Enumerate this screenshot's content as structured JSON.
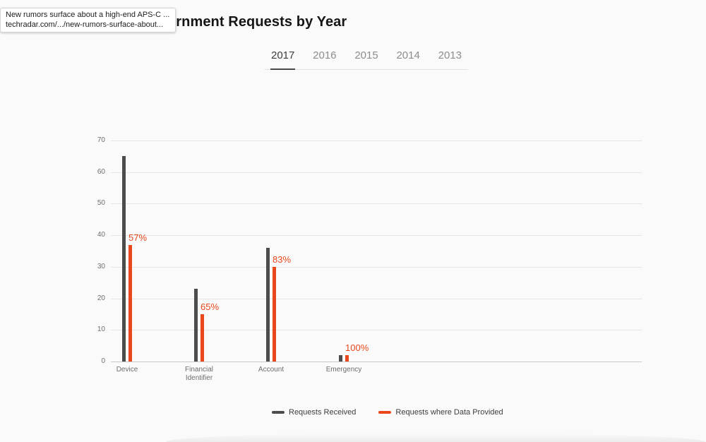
{
  "link_preview": {
    "title": "New rumors surface about a high-end APS-C ...",
    "url": "techradar.com/.../new-rumors-surface-about..."
  },
  "header": {
    "title": "India Government Requests by Year"
  },
  "tabs": [
    {
      "label": "2017",
      "active": true
    },
    {
      "label": "2016",
      "active": false
    },
    {
      "label": "2015",
      "active": false
    },
    {
      "label": "2014",
      "active": false
    },
    {
      "label": "2013",
      "active": false
    }
  ],
  "chart_data": {
    "type": "bar",
    "title": "India Government Requests by Year",
    "active_year": "2017",
    "categories": [
      "Device",
      "Financial Identifier",
      "Account",
      "Emergency"
    ],
    "series": [
      {
        "name": "Requests Received",
        "color": "#4c4c4c",
        "values": [
          65,
          23,
          36,
          2
        ]
      },
      {
        "name": "Requests where Data Provided",
        "color": "#e8481c",
        "values": [
          37,
          15,
          30,
          2
        ]
      }
    ],
    "percent_labels": {
      "values": [
        "57%",
        "65%",
        "83%",
        "100%"
      ],
      "color": "#e8481c"
    },
    "xlabel": "",
    "ylabel": "",
    "ylim": [
      0,
      70
    ],
    "yticks": [
      0,
      10,
      20,
      30,
      40,
      50,
      60,
      70
    ],
    "grid": true,
    "legend_position": "bottom"
  }
}
